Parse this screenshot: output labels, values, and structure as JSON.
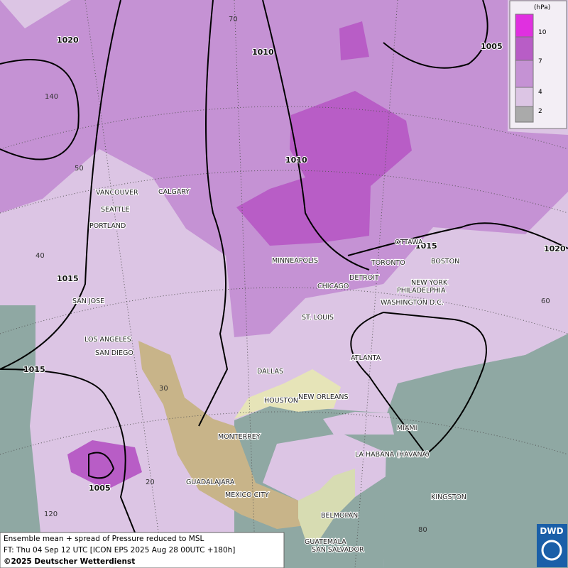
{
  "legend": {
    "unit": "(hPa)",
    "levels": [
      10,
      7,
      4,
      2
    ]
  },
  "isobars": [
    "1020",
    "1010",
    "1010",
    "1005",
    "1015",
    "1015",
    "1020",
    "1015",
    "1005"
  ],
  "graticule": [
    70,
    140,
    50,
    40,
    60,
    30,
    20,
    120,
    80
  ],
  "cities": [
    "VANCOUVER",
    "CALGARY",
    "SEATTLE",
    "PORTLAND",
    "OTTAWA",
    "MINNEAPOLIS",
    "TORONTO",
    "BOSTON",
    "DETROIT",
    "NEW YORK",
    "CHICAGO",
    "PHILADELPHIA",
    "WASHINGTON D.C.",
    "SAN JOSE",
    "ST. LOUIS",
    "LOS ANGELES",
    "SAN DIEGO",
    "ATLANTA",
    "DALLAS",
    "HOUSTON",
    "NEW ORLEANS",
    "MIAMI",
    "MONTERREY",
    "LA HABANA (HAVANA)",
    "GUADALAJARA",
    "MEXICO CITY",
    "KINGSTON",
    "BELMOPAN",
    "GUATEMALA",
    "SAN SALVADOR"
  ],
  "footer": [
    "Ensemble mean + spread of Pressure reduced to MSL",
    "FT: Thu 04 Sep 12 UTC [ICON EPS 2025 Aug 28 00UTC +180h]",
    "©2025 Deutscher Wetterdienst"
  ],
  "logo": "DWD"
}
